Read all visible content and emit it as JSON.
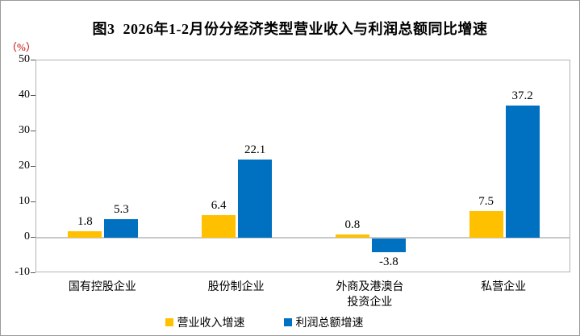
{
  "title": "图3  2026年1-2月份分经济类型营业收入与利润总额同比增速",
  "axis_unit": "（%）",
  "colors": {
    "title": "#000000",
    "axis_unit": "#c00000",
    "plot_border": "#b3b3b3",
    "zero_line": "#c8c8c8",
    "tick_mark": "#595959",
    "series_revenue": "#FFC000",
    "series_profit": "#0070C0"
  },
  "chart_data": {
    "type": "bar",
    "title": "图3 2026年1-2月份分经济类型营业收入与利润总额同比增速",
    "ylabel": "（%）",
    "xlabel": "",
    "ylim": [
      -10,
      50
    ],
    "ytick_step": 10,
    "yticks": [
      "50",
      "40",
      "30",
      "20",
      "10",
      "0",
      "-10"
    ],
    "grid": false,
    "legend_position": "bottom",
    "categories": [
      "国有控股企业",
      "股份制企业",
      "外商及港澳台投资企业",
      "私营企业"
    ],
    "categories_display": [
      [
        "国有控股企业"
      ],
      [
        "股份制企业"
      ],
      [
        "外商及港澳台",
        "投资企业"
      ],
      [
        "私营企业"
      ]
    ],
    "series": [
      {
        "name": "营业收入增速",
        "color": "#FFC000",
        "values": [
          1.8,
          6.4,
          0.8,
          7.5
        ]
      },
      {
        "name": "利润总额增速",
        "color": "#0070C0",
        "values": [
          5.3,
          22.1,
          -3.8,
          37.2
        ]
      }
    ],
    "value_labels": [
      [
        "1.8",
        "6.4",
        "0.8",
        "7.5"
      ],
      [
        "5.3",
        "22.1",
        "-3.8",
        "37.2"
      ]
    ]
  }
}
